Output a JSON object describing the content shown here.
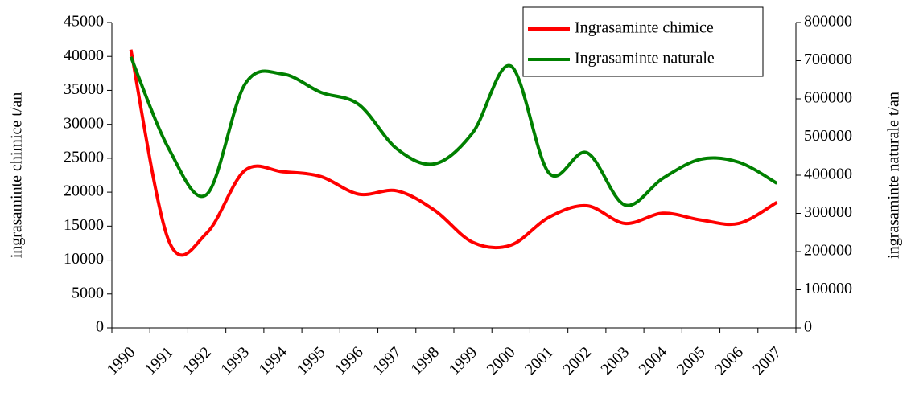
{
  "chart_data": {
    "type": "line",
    "categories": [
      "1990",
      "1991",
      "1992",
      "1993",
      "1994",
      "1995",
      "1996",
      "1997",
      "1998",
      "1999",
      "2000",
      "2001",
      "2002",
      "2003",
      "2004",
      "2005",
      "2006",
      "2007"
    ],
    "ylabel": "ingrasaminte chimice t/an",
    "y2label": "ingrasaminte naturale t/an",
    "ylim": [
      0,
      45000
    ],
    "yticks": [
      0,
      5000,
      10000,
      15000,
      20000,
      25000,
      30000,
      35000,
      40000,
      45000
    ],
    "y2lim": [
      0,
      800000
    ],
    "y2ticks": [
      0,
      100000,
      200000,
      300000,
      400000,
      500000,
      600000,
      700000,
      800000
    ],
    "grid": false,
    "legend": "upper right",
    "series": [
      {
        "name": "Ingrasaminte chimice",
        "color": "#ff0000",
        "values": [
          41000,
          12800,
          14000,
          23200,
          23000,
          22300,
          19700,
          20200,
          17300,
          12600,
          12200,
          16300,
          18000,
          15400,
          16900,
          15900,
          15400,
          18500
        ]
      },
      {
        "name": "Ingrasaminte naturale",
        "color": "#008000",
        "axis": "y2",
        "values": [
          710000,
          469000,
          350000,
          638000,
          665000,
          617000,
          585000,
          469000,
          430000,
          512000,
          686000,
          406000,
          459000,
          322000,
          392000,
          442000,
          434000,
          379000
        ]
      }
    ]
  }
}
